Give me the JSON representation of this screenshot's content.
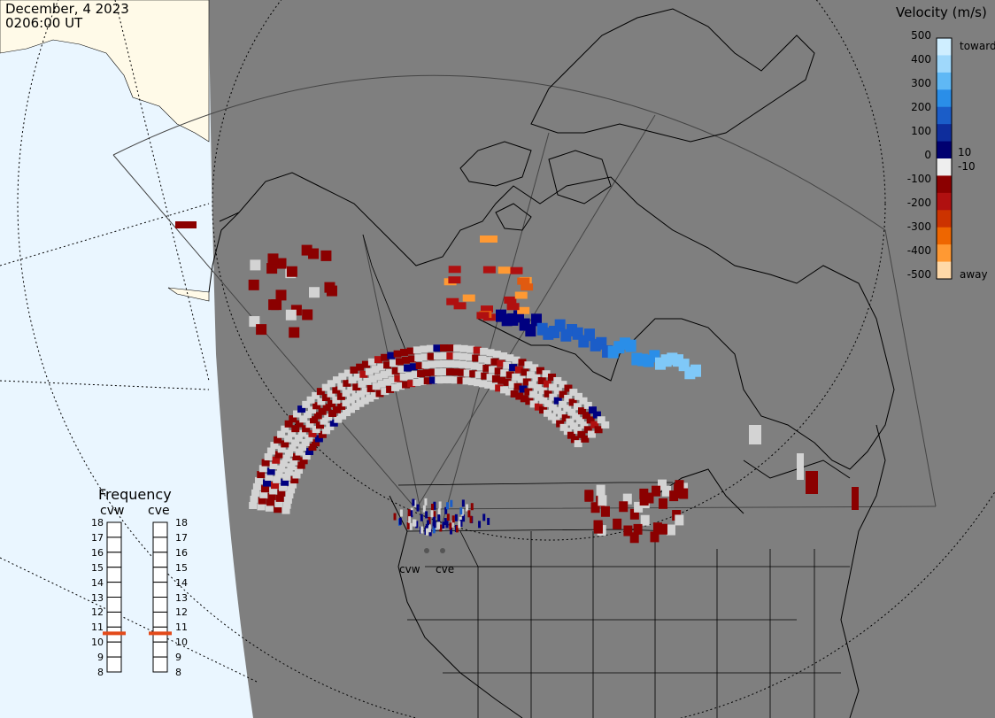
{
  "header": {
    "date": "December, 4 2023",
    "time": "0206:00 UT"
  },
  "velocity_scale": {
    "title": "Velocity (m/s)",
    "ticks": [
      "500",
      "400",
      "300",
      "200",
      "100",
      "10",
      "0",
      "-10",
      "-100",
      "-200",
      "-300",
      "-400",
      "-500"
    ],
    "toward_label": "toward",
    "away_label": "away",
    "colors": [
      "#cfeeff",
      "#9fd8fb",
      "#5fb8f5",
      "#2a8ee8",
      "#1b5dc8",
      "#0e2d9c",
      "#000070",
      "#eeeeee",
      "#8b0000",
      "#b01010",
      "#cc3300",
      "#ee6600",
      "#ff9933",
      "#ffd9a8"
    ]
  },
  "frequency_panel": {
    "title": "Frequency",
    "radars": [
      {
        "name": "cvw",
        "value_mhz": 11
      },
      {
        "name": "cve",
        "value_mhz": 11
      }
    ],
    "ticks": [
      "18",
      "17",
      "16",
      "15",
      "14",
      "13",
      "12",
      "11",
      "10",
      "9",
      "8"
    ],
    "marker_color": "#e34a1a"
  },
  "map": {
    "ocean_color": "#eaf6ff",
    "land_color": "#fffae8",
    "night_color": "#7f7f7f",
    "ground_scatter_color": "#d3d3d3"
  },
  "radars": [
    {
      "label": "cvw"
    },
    {
      "label": "cve"
    }
  ]
}
